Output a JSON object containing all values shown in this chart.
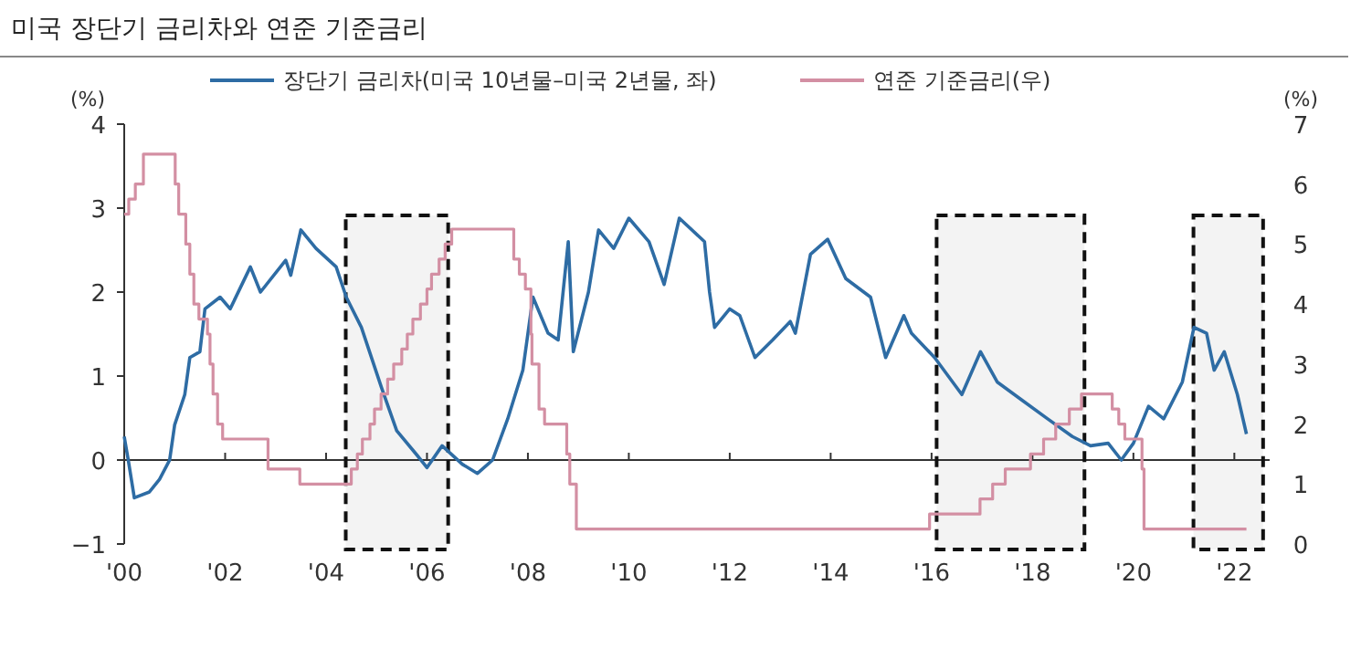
{
  "chart_data": {
    "type": "line",
    "title": "미국 장단기 금리차와 연준 기준금리",
    "ylabel": "(%)",
    "y2label": "(%)",
    "xlim": [
      2000,
      2022.7
    ],
    "xticks": [
      {
        "value": 2000,
        "label": "'00"
      },
      {
        "value": 2002,
        "label": "'02"
      },
      {
        "value": 2004,
        "label": "'04"
      },
      {
        "value": 2006,
        "label": "'06"
      },
      {
        "value": 2008,
        "label": "'08"
      },
      {
        "value": 2010,
        "label": "'10"
      },
      {
        "value": 2012,
        "label": "'12"
      },
      {
        "value": 2014,
        "label": "'14"
      },
      {
        "value": 2016,
        "label": "'16"
      },
      {
        "value": 2018,
        "label": "'18"
      },
      {
        "value": 2020,
        "label": "'20"
      },
      {
        "value": 2022,
        "label": "'22"
      }
    ],
    "ylim": [
      -1,
      4
    ],
    "yticks": [
      -1,
      0,
      1,
      2,
      3,
      4
    ],
    "y2lim": [
      0,
      7
    ],
    "y2ticks": [
      0,
      1,
      2,
      3,
      4,
      5,
      6,
      7
    ],
    "legend": "top",
    "series": [
      {
        "name": "장단기 금리차(미국 10년물–미국 2년물, 좌)",
        "color": "#2e6ca4",
        "x": [
          2000.0,
          2000.08,
          2000.2,
          2000.5,
          2000.7,
          2000.9,
          2001.0,
          2001.2,
          2001.3,
          2001.5,
          2001.6,
          2001.9,
          2002.1,
          2002.5,
          2002.7,
          2003.2,
          2003.3,
          2003.5,
          2003.8,
          2004.2,
          2004.4,
          2004.7,
          2005.1,
          2005.4,
          2005.8,
          2006.0,
          2006.3,
          2006.7,
          2007.0,
          2007.3,
          2007.6,
          2007.9,
          2008.1,
          2008.4,
          2008.6,
          2008.8,
          2008.9,
          2009.2,
          2009.4,
          2009.7,
          2010.0,
          2010.4,
          2010.7,
          2011.0,
          2011.5,
          2011.6,
          2011.7,
          2012.0,
          2012.2,
          2012.5,
          2012.85,
          2013.2,
          2013.3,
          2013.6,
          2013.94,
          2014.3,
          2014.79,
          2015.09,
          2015.45,
          2015.6,
          2016.06,
          2016.6,
          2016.97,
          2017.3,
          2017.8,
          2018.3,
          2018.79,
          2019.15,
          2019.5,
          2019.76,
          2020.0,
          2020.3,
          2020.6,
          2020.97,
          2021.2,
          2021.45,
          2021.6,
          2021.8,
          2022.06,
          2022.24
        ],
        "values": [
          0.28,
          0.0,
          -0.45,
          -0.38,
          -0.23,
          0.0,
          0.42,
          0.78,
          1.22,
          1.29,
          1.8,
          1.94,
          1.8,
          2.3,
          2.0,
          2.38,
          2.2,
          2.74,
          2.52,
          2.3,
          1.94,
          1.58,
          0.86,
          0.35,
          0.06,
          -0.09,
          0.17,
          -0.05,
          -0.16,
          0.0,
          0.49,
          1.07,
          1.94,
          1.51,
          1.43,
          2.6,
          1.29,
          2.0,
          2.74,
          2.52,
          2.88,
          2.6,
          2.09,
          2.88,
          2.6,
          2.0,
          1.58,
          1.8,
          1.72,
          1.22,
          1.43,
          1.65,
          1.51,
          2.45,
          2.63,
          2.16,
          1.94,
          1.22,
          1.72,
          1.51,
          1.22,
          0.78,
          1.29,
          0.93,
          0.71,
          0.49,
          0.28,
          0.17,
          0.2,
          0.0,
          0.2,
          0.64,
          0.49,
          0.93,
          1.58,
          1.51,
          1.07,
          1.29,
          0.78,
          0.31
        ]
      },
      {
        "name": "연준 기준금리(우)",
        "color": "#d38fa3",
        "type": "step",
        "axis": "y2",
        "x": [
          2000.0,
          2000.09,
          2000.22,
          2000.38,
          2001.01,
          2001.08,
          2001.22,
          2001.3,
          2001.38,
          2001.48,
          2001.65,
          2001.7,
          2001.76,
          2001.85,
          2001.95,
          2002.85,
          2003.48,
          2004.5,
          2004.62,
          2004.72,
          2004.87,
          2004.96,
          2005.09,
          2005.22,
          2005.34,
          2005.5,
          2005.61,
          2005.72,
          2005.87,
          2006.0,
          2006.09,
          2006.24,
          2006.36,
          2006.49,
          2007.72,
          2007.83,
          2007.95,
          2008.06,
          2008.08,
          2008.22,
          2008.33,
          2008.77,
          2008.83,
          2008.96,
          2015.96,
          2016.96,
          2017.21,
          2017.46,
          2017.96,
          2018.22,
          2018.46,
          2018.73,
          2018.97,
          2019.58,
          2019.71,
          2019.83,
          2020.17,
          2020.21,
          2022.24
        ],
        "values": [
          5.5,
          5.75,
          6.0,
          6.5,
          6.0,
          5.5,
          5.0,
          4.5,
          4.0,
          3.75,
          3.5,
          3.0,
          2.5,
          2.0,
          1.75,
          1.25,
          1.0,
          1.25,
          1.5,
          1.75,
          2.0,
          2.25,
          2.5,
          2.75,
          3.0,
          3.25,
          3.5,
          3.75,
          4.0,
          4.25,
          4.5,
          4.75,
          5.0,
          5.25,
          4.75,
          4.5,
          4.25,
          3.5,
          3.0,
          2.25,
          2.0,
          1.5,
          1.0,
          0.25,
          0.5,
          0.75,
          1.0,
          1.25,
          1.5,
          1.75,
          2.0,
          2.25,
          2.5,
          2.25,
          2.0,
          1.75,
          1.25,
          0.25,
          0.25
        ]
      }
    ],
    "bands": [
      {
        "axis": "x",
        "from": 2004.39,
        "to": 2006.42,
        "color": "#111111"
      },
      {
        "axis": "x",
        "from": 2016.1,
        "to": 2019.03,
        "color": "#111111"
      },
      {
        "axis": "x",
        "from": 2021.19,
        "to": 2022.57,
        "color": "#111111"
      }
    ]
  }
}
